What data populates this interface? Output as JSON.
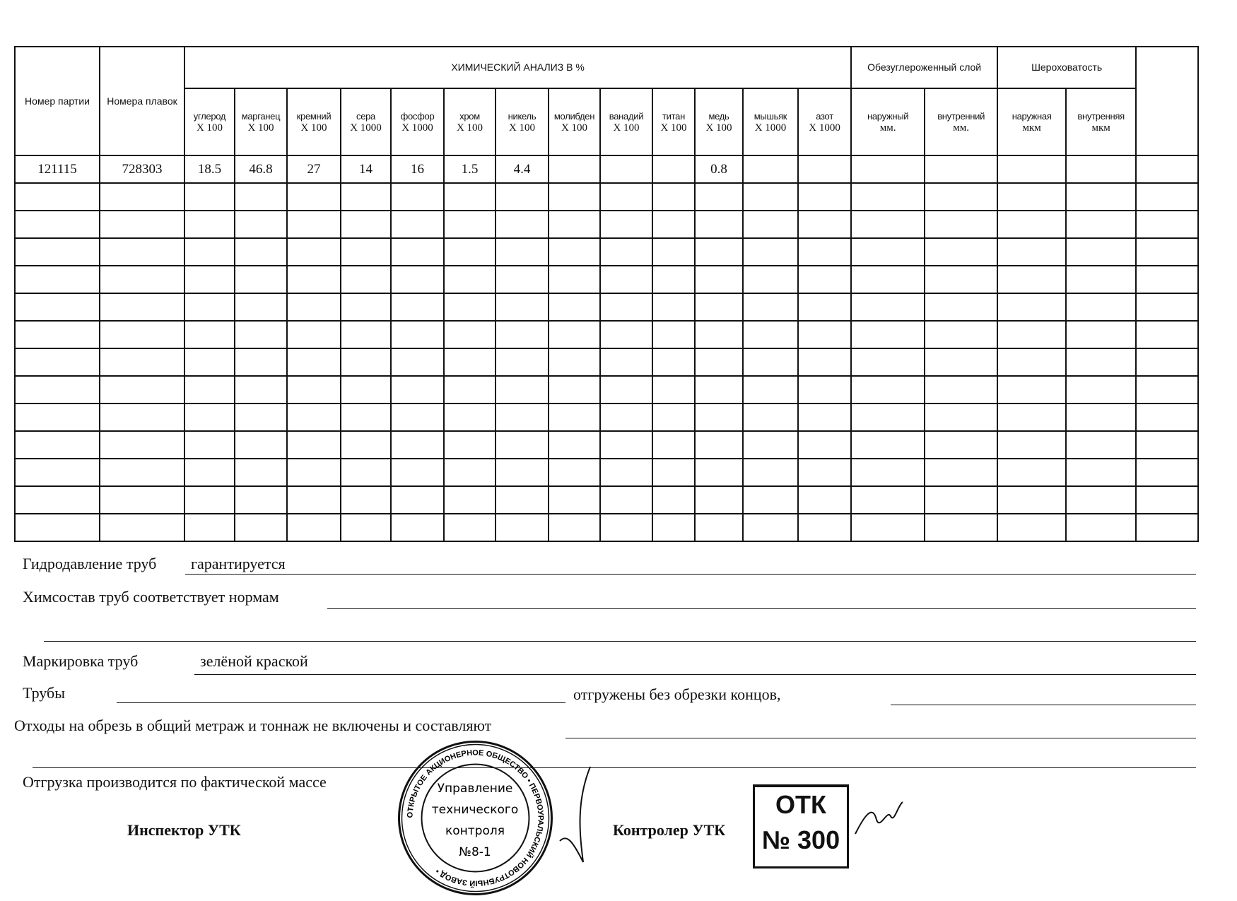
{
  "table": {
    "col_batch": "Номер партии",
    "col_heats": "Номера плавок",
    "chem_title": "ХИМИЧЕСКИЙ АНАЛИЗ  В  %",
    "decarb_title": "Обезуглероженный слой",
    "rough_title": "Шероховатость",
    "chem_cols": [
      {
        "name": "углерод",
        "unit": "Х 100"
      },
      {
        "name": "марганец",
        "unit": "Х 100"
      },
      {
        "name": "кремний",
        "unit": "Х 100"
      },
      {
        "name": "сера",
        "unit": "Х 1000"
      },
      {
        "name": "фосфор",
        "unit": "Х 1000"
      },
      {
        "name": "хром",
        "unit": "Х 100"
      },
      {
        "name": "никель",
        "unit": "Х 100"
      },
      {
        "name": "молибден",
        "unit": "Х 100"
      },
      {
        "name": "ванадий",
        "unit": "Х 100"
      },
      {
        "name": "титан",
        "unit": "Х 100"
      },
      {
        "name": "медь",
        "unit": "Х 100"
      },
      {
        "name": "мышьяк",
        "unit": "Х 1000"
      },
      {
        "name": "азот",
        "unit": "Х 1000"
      }
    ],
    "decarb_cols": [
      {
        "name": "наружный",
        "unit": "мм."
      },
      {
        "name": "внутренний",
        "unit": "мм."
      }
    ],
    "rough_cols": [
      {
        "name": "наружная",
        "unit": "мкм"
      },
      {
        "name": "внутренняя",
        "unit": "мкм"
      }
    ],
    "rows": [
      [
        "121115",
        "728303",
        "18.5",
        "46.8",
        "27",
        "14",
        "16",
        "1.5",
        "4.4",
        "",
        "",
        "",
        "0.8",
        "",
        "",
        "",
        "",
        "",
        "",
        ""
      ]
    ],
    "empty_rows": 13
  },
  "form": {
    "hydro_label": "Гидродавление труб",
    "hydro_value": "гарантируется",
    "chem_label": "Химсостав труб соответствует нормам",
    "marking_label": "Маркировка труб",
    "marking_value": "зелёной краской",
    "pipes_label": "Трубы",
    "shipped_label": "отгружены без обрезки концов,",
    "waste_label": "Отходы на обрезь в общий метраж и тоннаж не включены и составляют",
    "shipping_label": "Отгрузка производится по фактической массе",
    "inspector_label": "Инспектор  УТК",
    "controller_label": "Контролер УТК"
  },
  "stamp": {
    "ring_text": "ОТКРЫТОЕ АКЦИОНЕРНОЕ ОБЩЕСТВО • ПЕРВОУРАЛЬСКИЙ НОВОТРУБНЫЙ ЗАВОД •",
    "center_lines": [
      "Управление",
      "технического",
      "контроля",
      "№8-1"
    ]
  },
  "otk_stamp": {
    "line1": "ОТК",
    "line2": "№ 300"
  }
}
